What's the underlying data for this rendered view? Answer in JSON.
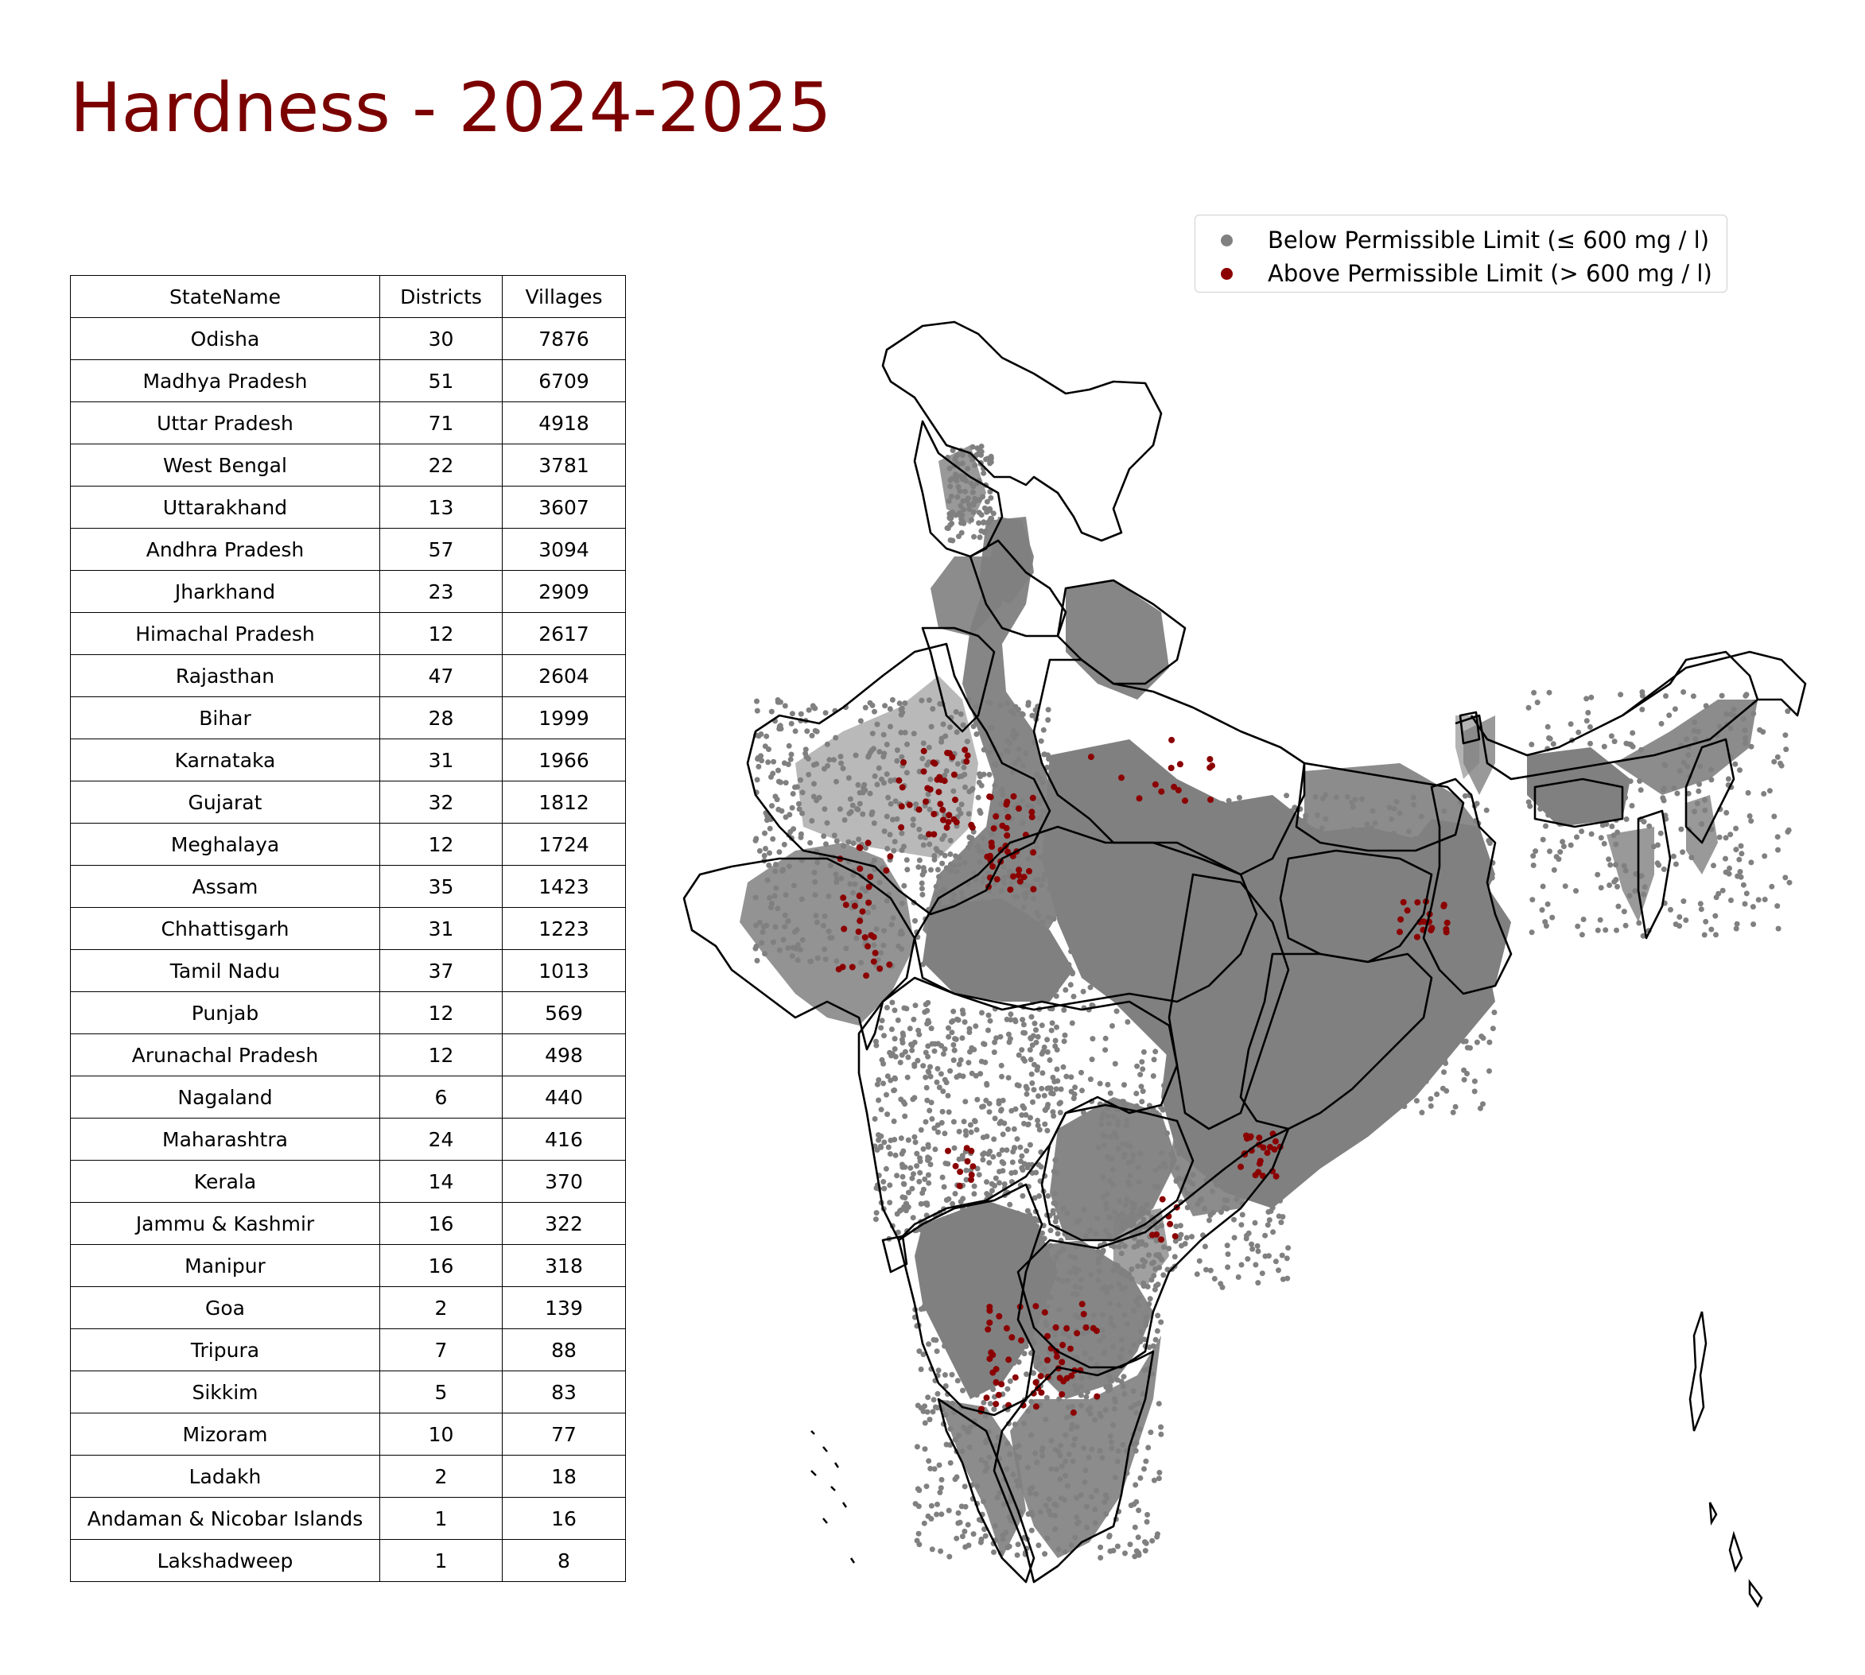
{
  "title": "Hardness - 2024-2025",
  "legend": {
    "below": {
      "label": "Below Permissible Limit (≤ 600 mg / l)",
      "color": "#808080"
    },
    "above": {
      "label": "Above Permissible Limit (> 600 mg / l)",
      "color": "#8b0000"
    }
  },
  "table": {
    "headers": [
      "StateName",
      "Districts",
      "Villages"
    ],
    "rows": [
      [
        "Odisha",
        "30",
        "7876"
      ],
      [
        "Madhya Pradesh",
        "51",
        "6709"
      ],
      [
        "Uttar Pradesh",
        "71",
        "4918"
      ],
      [
        "West Bengal",
        "22",
        "3781"
      ],
      [
        "Uttarakhand",
        "13",
        "3607"
      ],
      [
        "Andhra Pradesh",
        "57",
        "3094"
      ],
      [
        "Jharkhand",
        "23",
        "2909"
      ],
      [
        "Himachal Pradesh",
        "12",
        "2617"
      ],
      [
        "Rajasthan",
        "47",
        "2604"
      ],
      [
        "Bihar",
        "28",
        "1999"
      ],
      [
        "Karnataka",
        "31",
        "1966"
      ],
      [
        "Gujarat",
        "32",
        "1812"
      ],
      [
        "Meghalaya",
        "12",
        "1724"
      ],
      [
        "Assam",
        "35",
        "1423"
      ],
      [
        "Chhattisgarh",
        "31",
        "1223"
      ],
      [
        "Tamil Nadu",
        "37",
        "1013"
      ],
      [
        "Punjab",
        "12",
        "569"
      ],
      [
        "Arunachal Pradesh",
        "12",
        "498"
      ],
      [
        "Nagaland",
        "6",
        "440"
      ],
      [
        "Maharashtra",
        "24",
        "416"
      ],
      [
        "Kerala",
        "14",
        "370"
      ],
      [
        "Jammu & Kashmir",
        "16",
        "322"
      ],
      [
        "Manipur",
        "16",
        "318"
      ],
      [
        "Goa",
        "2",
        "139"
      ],
      [
        "Tripura",
        "7",
        "88"
      ],
      [
        "Sikkim",
        "5",
        "83"
      ],
      [
        "Mizoram",
        "10",
        "77"
      ],
      [
        "Ladakh",
        "2",
        "18"
      ],
      [
        "Andaman & Nicobar Islands",
        "1",
        "16"
      ],
      [
        "Lakshadweep",
        "1",
        "8"
      ]
    ]
  }
}
